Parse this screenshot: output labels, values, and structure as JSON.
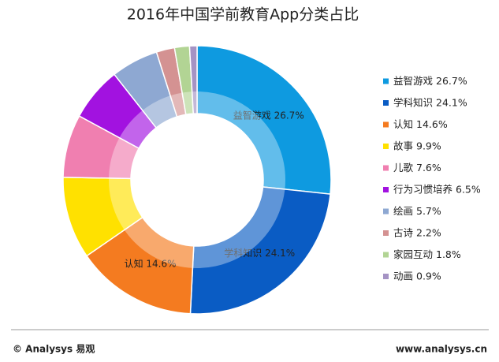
{
  "chart_data": {
    "type": "donut",
    "title": "2016年中国学前教育App分类占比",
    "categories": [
      "益智游戏",
      "学科知识",
      "认知",
      "故事",
      "儿歌",
      "行为习惯培养",
      "绘画",
      "古诗",
      "家园互动",
      "动画"
    ],
    "values": [
      26.7,
      24.1,
      14.6,
      9.9,
      7.6,
      6.5,
      5.7,
      2.2,
      1.8,
      0.9
    ],
    "value_labels": [
      "26.7%",
      "24.1%",
      "14.6%",
      "9.9%",
      "7.6%",
      "6.5%",
      "5.7%",
      "2.2%",
      "1.8%",
      "0.9%"
    ],
    "colors": [
      "#0e9ae0",
      "#0a5cc4",
      "#f47b20",
      "#ffe100",
      "#f07fb0",
      "#a212e0",
      "#8ea8d2",
      "#d49292",
      "#b2d494",
      "#a593c4"
    ],
    "legend": "right",
    "footer_left": "© Analysys 易观",
    "footer_right": "www.analysys.cn"
  }
}
